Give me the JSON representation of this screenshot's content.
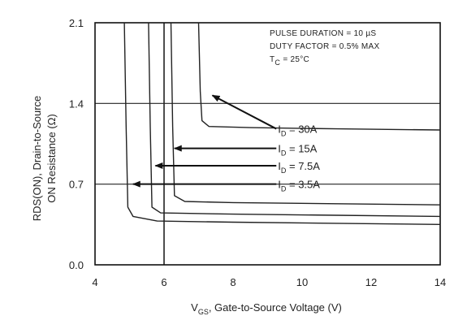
{
  "chart_data": {
    "type": "line",
    "x_range": [
      4,
      14
    ],
    "y_range": [
      0.0,
      2.1
    ],
    "x_ticks": [
      {
        "v": 4,
        "label": "4"
      },
      {
        "v": 6,
        "label": "6"
      },
      {
        "v": 8,
        "label": "8"
      },
      {
        "v": 10,
        "label": "10"
      },
      {
        "v": 12,
        "label": "12"
      },
      {
        "v": 14,
        "label": "14"
      }
    ],
    "y_ticks": [
      {
        "v": 0.0,
        "label": "0.0"
      },
      {
        "v": 0.7,
        "label": "0.7"
      },
      {
        "v": 1.4,
        "label": "1.4"
      },
      {
        "v": 2.1,
        "label": "2.1"
      }
    ],
    "grid_y": [
      0.7,
      1.4
    ],
    "grid_x": [
      6
    ],
    "xlabel": {
      "main": "V",
      "sub": "GS",
      "rest": ", Gate-to-Source Voltage (V)"
    },
    "ylabel_line1": "RDS(ON), Drain-to-Source",
    "ylabel_line2": "ON Resistance (Ω)",
    "annotations": [
      "PULSE DURATION = 10 µS",
      "DUTY FACTOR = 0.5% MAX",
      {
        "main": "T",
        "sub": "C",
        "rest": " = 25°C"
      }
    ],
    "series": [
      {
        "name": {
          "main": "I",
          "sub": "D",
          "rest": " = 30A"
        },
        "points": [
          [
            7.0,
            2.1
          ],
          [
            7.05,
            1.5
          ],
          [
            7.1,
            1.25
          ],
          [
            7.3,
            1.2
          ],
          [
            8.5,
            1.19
          ],
          [
            11,
            1.18
          ],
          [
            14,
            1.17
          ]
        ],
        "label_at": [
          9.3,
          1.18
        ],
        "arrow_to": [
          7.4,
          1.47
        ]
      },
      {
        "name": {
          "main": "I",
          "sub": "D",
          "rest": " = 15A"
        },
        "points": [
          [
            6.2,
            2.1
          ],
          [
            6.25,
            1.2
          ],
          [
            6.3,
            0.6
          ],
          [
            6.6,
            0.55
          ],
          [
            8,
            0.54
          ],
          [
            11,
            0.53
          ],
          [
            14,
            0.52
          ]
        ],
        "label_at": [
          9.3,
          1.01
        ],
        "arrow_to": [
          6.3,
          1.01
        ]
      },
      {
        "name": {
          "main": "I",
          "sub": "D",
          "rest": " = 7.5A"
        },
        "points": [
          [
            5.55,
            2.1
          ],
          [
            5.6,
            1.2
          ],
          [
            5.65,
            0.5
          ],
          [
            5.9,
            0.45
          ],
          [
            8,
            0.44
          ],
          [
            11,
            0.43
          ],
          [
            14,
            0.42
          ]
        ],
        "label_at": [
          9.3,
          0.86
        ],
        "arrow_to": [
          5.75,
          0.86
        ]
      },
      {
        "name": {
          "main": "I",
          "sub": "D",
          "rest": " = 3.5A"
        },
        "points": [
          [
            4.85,
            2.1
          ],
          [
            4.9,
            1.2
          ],
          [
            4.95,
            0.5
          ],
          [
            5.1,
            0.42
          ],
          [
            5.8,
            0.38
          ],
          [
            8,
            0.37
          ],
          [
            11,
            0.36
          ],
          [
            14,
            0.35
          ]
        ],
        "label_at": [
          9.3,
          0.7
        ],
        "arrow_to": [
          5.1,
          0.7
        ]
      }
    ]
  }
}
